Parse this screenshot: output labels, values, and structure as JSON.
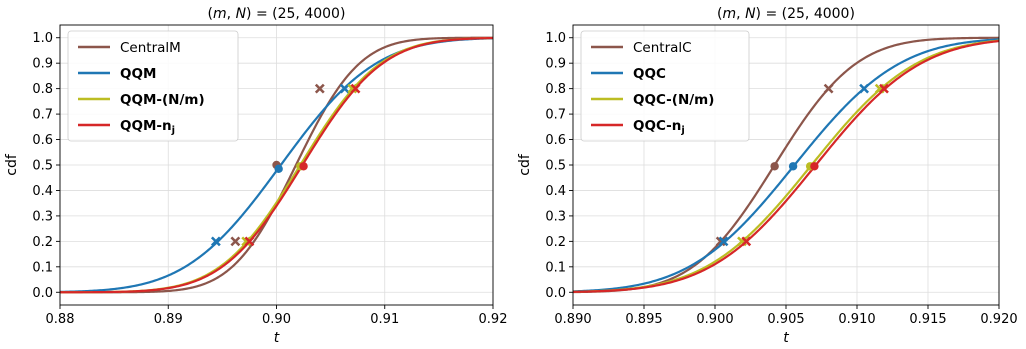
{
  "chart_data": [
    {
      "type": "line",
      "title": "$(m, N) = (25, 4000)$",
      "title_parts": {
        "lhs": "(m, N)",
        "eq": " = ",
        "rhs": "(25, 4000)"
      },
      "xlabel": "t",
      "ylabel": "cdf",
      "xlim": [
        0.88,
        0.92
      ],
      "ylim": [
        -0.05,
        1.05
      ],
      "xticks": [
        0.88,
        0.89,
        0.9,
        0.91,
        0.92
      ],
      "xtick_labels": [
        "0.88",
        "0.89",
        "0.90",
        "0.91",
        "0.92"
      ],
      "yticks": [
        0.0,
        0.1,
        0.2,
        0.3,
        0.4,
        0.5,
        0.6,
        0.7,
        0.8,
        0.9,
        1.0
      ],
      "ytick_labels": [
        "0.0",
        "0.1",
        "0.2",
        "0.3",
        "0.4",
        "0.5",
        "0.6",
        "0.7",
        "0.8",
        "0.9",
        "1.0"
      ],
      "grid": true,
      "legend_position": "top-left",
      "series": [
        {
          "name": "CentralM",
          "bold": false,
          "color": "#8c564b",
          "mu": 0.9018,
          "sigma": 0.0046,
          "markers": [
            {
              "shape": "x",
              "x": 0.8962,
              "y": 0.2
            },
            {
              "shape": "dot",
              "x": 0.9,
              "y": 0.5
            },
            {
              "shape": "x",
              "x": 0.904,
              "y": 0.8
            }
          ]
        },
        {
          "name": "QQM",
          "bold": true,
          "color": "#1f77b4",
          "mu": 0.9004,
          "sigma": 0.0069,
          "markers": [
            {
              "shape": "x",
              "x": 0.8944,
              "y": 0.2
            },
            {
              "shape": "dot",
              "x": 0.9002,
              "y": 0.485
            },
            {
              "shape": "x",
              "x": 0.9063,
              "y": 0.8
            }
          ]
        },
        {
          "name": "QQM-(N/m)",
          "bold": true,
          "color": "#bcbd22",
          "mu": 0.9022,
          "sigma": 0.0058,
          "markers": [
            {
              "shape": "x",
              "x": 0.8972,
              "y": 0.2
            },
            {
              "shape": "dot",
              "x": 0.9022,
              "y": 0.495
            },
            {
              "shape": "x",
              "x": 0.907,
              "y": 0.8
            }
          ]
        },
        {
          "name": "QQM-",
          "subscript": "j",
          "prefix_bold": "n",
          "bold": true,
          "color": "#d62728",
          "mu": 0.9024,
          "sigma": 0.0058,
          "markers": [
            {
              "shape": "x",
              "x": 0.8975,
              "y": 0.2
            },
            {
              "shape": "dot",
              "x": 0.9025,
              "y": 0.495
            },
            {
              "shape": "x",
              "x": 0.9073,
              "y": 0.8
            }
          ]
        }
      ]
    },
    {
      "type": "line",
      "title": "$(m, N) = (25, 4000)$",
      "title_parts": {
        "lhs": "(m, N)",
        "eq": " = ",
        "rhs": "(25, 4000)"
      },
      "xlabel": "t",
      "ylabel": "cdf",
      "xlim": [
        0.89,
        0.92
      ],
      "ylim": [
        -0.05,
        1.05
      ],
      "xticks": [
        0.89,
        0.895,
        0.9,
        0.905,
        0.91,
        0.915,
        0.92
      ],
      "xtick_labels": [
        "0.890",
        "0.895",
        "0.900",
        "0.905",
        "0.910",
        "0.915",
        "0.920"
      ],
      "yticks": [
        0.0,
        0.1,
        0.2,
        0.3,
        0.4,
        0.5,
        0.6,
        0.7,
        0.8,
        0.9,
        1.0
      ],
      "ytick_labels": [
        "0.0",
        "0.1",
        "0.2",
        "0.3",
        "0.4",
        "0.5",
        "0.6",
        "0.7",
        "0.8",
        "0.9",
        "1.0"
      ],
      "grid": true,
      "legend_position": "top-left",
      "series": [
        {
          "name": "CentralC",
          "bold": false,
          "color": "#8c564b",
          "mu": 0.9042,
          "sigma": 0.0045,
          "markers": [
            {
              "shape": "x",
              "x": 0.9004,
              "y": 0.2
            },
            {
              "shape": "dot",
              "x": 0.9042,
              "y": 0.495
            },
            {
              "shape": "x",
              "x": 0.908,
              "y": 0.8
            }
          ]
        },
        {
          "name": "QQC",
          "bold": true,
          "color": "#1f77b4",
          "mu": 0.9056,
          "sigma": 0.0058,
          "markers": [
            {
              "shape": "x",
              "x": 0.9006,
              "y": 0.2
            },
            {
              "shape": "dot",
              "x": 0.9055,
              "y": 0.495
            },
            {
              "shape": "x",
              "x": 0.9105,
              "y": 0.8
            }
          ]
        },
        {
          "name": "QQC-(N/m)",
          "bold": true,
          "color": "#bcbd22",
          "mu": 0.9068,
          "sigma": 0.0058,
          "markers": [
            {
              "shape": "x",
              "x": 0.9019,
              "y": 0.2
            },
            {
              "shape": "dot",
              "x": 0.9067,
              "y": 0.495
            },
            {
              "shape": "x",
              "x": 0.9116,
              "y": 0.8
            }
          ]
        },
        {
          "name": "QQC-",
          "subscript": "j",
          "prefix_bold": "n",
          "bold": true,
          "color": "#d62728",
          "mu": 0.9071,
          "sigma": 0.0058,
          "markers": [
            {
              "shape": "x",
              "x": 0.9022,
              "y": 0.2
            },
            {
              "shape": "dot",
              "x": 0.907,
              "y": 0.495
            },
            {
              "shape": "x",
              "x": 0.9119,
              "y": 0.8
            }
          ]
        }
      ]
    }
  ]
}
